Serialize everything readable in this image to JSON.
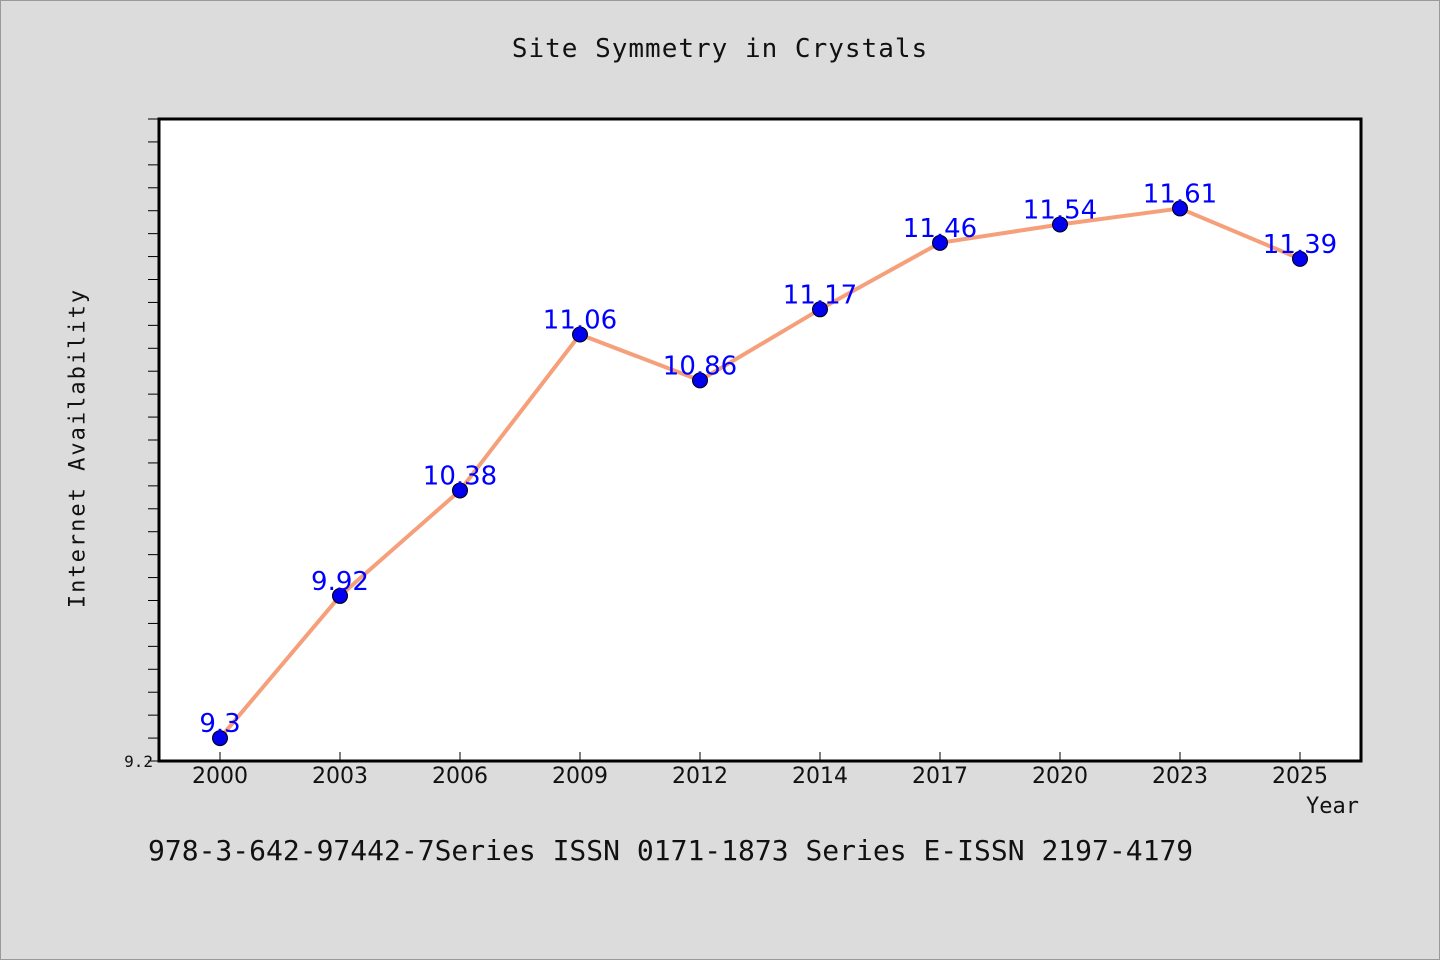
{
  "footnote": "978-3-642-97442-7Series ISSN 0171-1873 Series E-ISSN 2197-4179",
  "chart_data": {
    "type": "line",
    "title": "Site Symmetry in Crystals",
    "xlabel": "Year",
    "ylabel": "Internet Availability",
    "categories": [
      "2000",
      "2003",
      "2006",
      "2009",
      "2012",
      "2014",
      "2017",
      "2020",
      "2023",
      "2025"
    ],
    "series": [
      {
        "values": [
          9.3,
          9.92,
          10.38,
          11.06,
          10.86,
          11.17,
          11.46,
          11.54,
          11.61,
          11.39
        ]
      }
    ],
    "data_labels": [
      "9.3",
      "9.92",
      "10.38",
      "11.06",
      "10.86",
      "11.17",
      "11.46",
      "11.54",
      "11.61",
      "11.39"
    ],
    "ylim": [
      9.2,
      12.0
    ],
    "y_tick_labels": [
      "9.2"
    ],
    "grid": false,
    "legend": "none",
    "colors": {
      "line": "#f5a07a",
      "marker": "#0000ee",
      "data_label": "#0000ff",
      "plot_background": "#ffffff",
      "page_background": "#dcdcdc"
    }
  }
}
